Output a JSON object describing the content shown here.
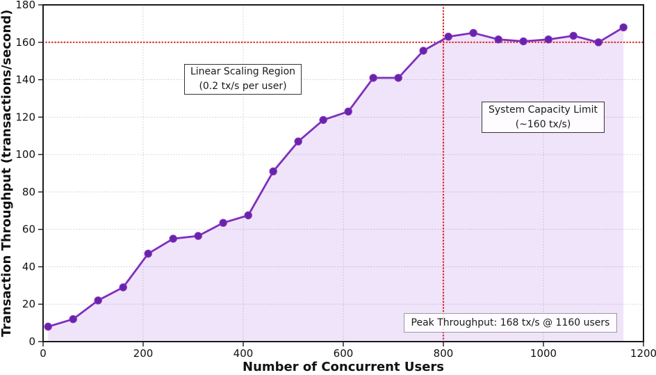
{
  "chart_data": {
    "type": "area",
    "title": "",
    "xlabel": "Number of Concurrent Users",
    "ylabel": "Transaction Throughput (transactions/second)",
    "x": [
      10,
      60,
      110,
      160,
      210,
      260,
      310,
      360,
      410,
      460,
      510,
      560,
      610,
      660,
      710,
      760,
      810,
      860,
      910,
      960,
      1010,
      1060,
      1110,
      1160
    ],
    "series": [
      {
        "name": "transaction-throughput",
        "values": [
          8,
          12,
          22,
          29,
          47,
          55,
          56.5,
          63.5,
          67.5,
          91,
          107,
          118.5,
          123,
          141,
          141,
          155.5,
          163,
          165,
          161.5,
          160.5,
          161.5,
          163.5,
          160,
          168
        ]
      }
    ],
    "xlim": [
      0,
      1200
    ],
    "ylim": [
      0,
      180
    ],
    "x_ticks": [
      0,
      200,
      400,
      600,
      800,
      1000,
      1200
    ],
    "y_ticks": [
      0,
      20,
      40,
      60,
      80,
      100,
      120,
      140,
      160,
      180
    ],
    "grid": true,
    "legend": "none",
    "colors": {
      "line": "#7e2ebd",
      "marker": "#6724a8",
      "fill": "rgba(138,43,226,0.13)",
      "reference": "#e32120"
    },
    "reference_lines": {
      "horizontal": {
        "y": 160
      },
      "vertical": {
        "x": 800
      }
    },
    "annotations": [
      {
        "id": "linear-scaling-region",
        "lines": [
          "Linear Scaling Region",
          "(0.2 tx/s per user)"
        ]
      },
      {
        "id": "system-capacity-limit",
        "lines": [
          "System Capacity Limit",
          "(~160 tx/s)"
        ]
      },
      {
        "id": "peak-throughput",
        "lines": [
          "Peak Throughput: 168 tx/s @ 1160 users"
        ]
      }
    ]
  }
}
